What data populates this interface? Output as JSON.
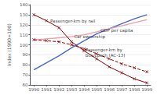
{
  "chart_data": {
    "type": "line",
    "x": [
      1990,
      1991,
      1992,
      1993,
      1994,
      1995,
      1996,
      1997,
      1998,
      1999
    ],
    "xlim": [
      1989.7,
      1999.3
    ],
    "xticks": [
      1990,
      1991,
      1992,
      1993,
      1994,
      1995,
      1996,
      1997,
      1998,
      1999
    ],
    "ylim": [
      60,
      140
    ],
    "yticks": [
      60,
      70,
      80,
      90,
      100,
      110,
      120,
      130,
      140
    ],
    "ylabel": "Index (1990=100)",
    "grid": "y",
    "series": [
      {
        "color": "#4466CC",
        "values": [
          75,
          82,
          89,
          97,
          104,
          111,
          116,
          121,
          126,
          130
        ]
      },
      {
        "color": "#E8A0A0",
        "values": [
          105,
          106,
          107,
          108,
          110,
          113,
          116,
          119,
          122,
          125
        ]
      },
      {
        "color": "#8B0000",
        "marker": "x",
        "values": [
          130,
          124,
          117,
          103,
          94,
          86,
          78,
          72,
          66,
          62
        ]
      },
      {
        "color": "#8B0000",
        "marker": "x",
        "line_style": "dashed",
        "values": [
          105,
          104,
          103,
          100,
          96,
          91,
          86,
          81,
          77,
          73
        ]
      }
    ],
    "annotations": [
      {
        "text": "Passenger-km by rail",
        "x": 1991.3,
        "y": 121
      },
      {
        "text": "Car ownership",
        "x": 1993.2,
        "y": 106
      },
      {
        "text": "GDP per capita",
        "x": 1995.3,
        "y": 112
      },
      {
        "text": "Passenger-km by\nbus/coach (AC-13)",
        "x": 1994.1,
        "y": 87
      }
    ]
  }
}
